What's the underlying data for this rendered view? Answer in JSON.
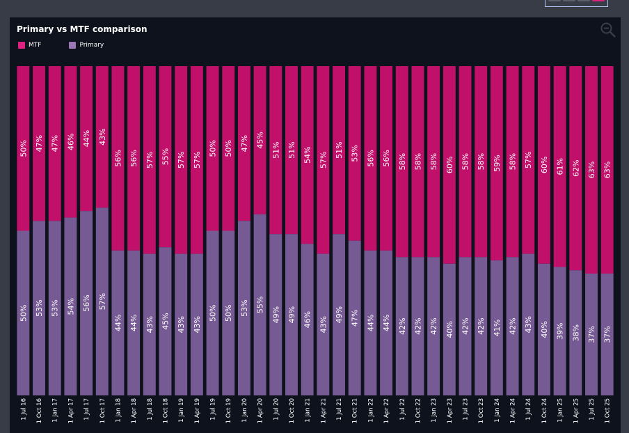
{
  "window": {
    "top_control_segments": [
      {
        "active": false
      },
      {
        "active": false
      },
      {
        "active": false
      },
      {
        "active": true
      }
    ]
  },
  "panel": {
    "zoom_icon": "zoom-out-icon"
  },
  "colors": {
    "mtf": "#c0106a",
    "primary": "#765a93",
    "background": "#0e121d",
    "page": "#383c47"
  },
  "chart_data": {
    "type": "bar",
    "stacked": true,
    "normalized_100": true,
    "title": "Primary vs MTF comparison",
    "legend": [
      {
        "name": "MTF",
        "color": "#e0217f"
      },
      {
        "name": "Primary",
        "color": "#9b77b6"
      }
    ],
    "legend_position": "top-left",
    "xlabel": "",
    "ylabel": "",
    "ylim": [
      0,
      100
    ],
    "grid": false,
    "categories": [
      "1 Jul 16",
      "1 Oct 16",
      "1 Jan 17",
      "1 Apr 17",
      "1 Jul 17",
      "1 Oct 17",
      "1 Jan 18",
      "1 Apr 18",
      "1 Jul 18",
      "1 Oct 18",
      "1 Jan 19",
      "1 Apr 19",
      "1 Jul 19",
      "1 Oct 19",
      "1 Jan 20",
      "1 Apr 20",
      "1 Jul 20",
      "1 Oct 20",
      "1 Jan 21",
      "1 Apr 21",
      "1 Jul 21",
      "1 Oct 21",
      "1 Jan 22",
      "1 Apr 22",
      "1 Jul 22",
      "1 Oct 22",
      "1 Jan 23",
      "1 Apr 23",
      "1 Jul 23",
      "1 Oct 23",
      "1 Jan 24",
      "1 Apr 24",
      "1 Jul 24",
      "1 Oct 24",
      "1 Jan 25",
      "1 Apr 25",
      "1 Jul 25",
      "1 Oct 25"
    ],
    "series": [
      {
        "name": "Primary",
        "position": "bottom",
        "values": [
          50,
          53,
          53,
          54,
          56,
          57,
          44,
          44,
          43,
          45,
          43,
          43,
          50,
          50,
          53,
          55,
          49,
          49,
          46,
          43,
          49,
          47,
          44,
          44,
          42,
          42,
          42,
          40,
          42,
          42,
          41,
          42,
          43,
          40,
          39,
          38,
          37,
          37
        ]
      },
      {
        "name": "MTF",
        "position": "top",
        "values": [
          50,
          47,
          47,
          46,
          44,
          43,
          56,
          56,
          57,
          55,
          57,
          57,
          50,
          50,
          47,
          45,
          51,
          51,
          54,
          57,
          51,
          53,
          56,
          56,
          58,
          58,
          58,
          60,
          58,
          58,
          59,
          58,
          57,
          60,
          61,
          62,
          63,
          63
        ]
      }
    ],
    "value_label_format": "{v}%"
  }
}
